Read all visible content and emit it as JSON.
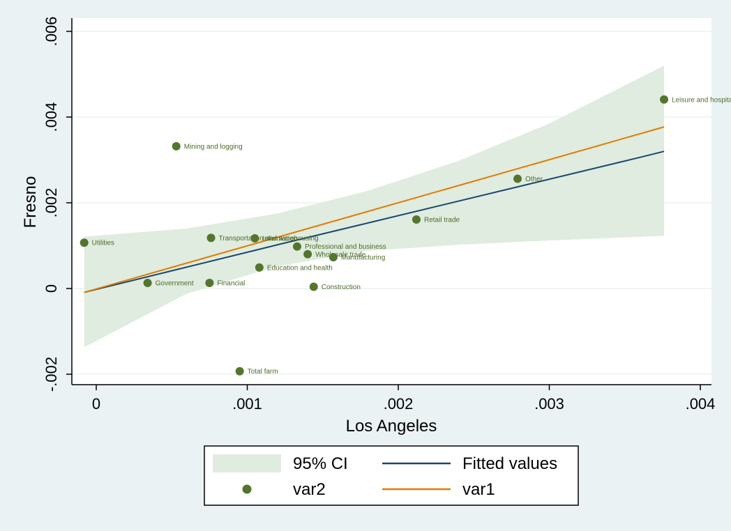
{
  "chart_data": {
    "type": "scatter",
    "xlabel": "Los Angeles",
    "ylabel": "Fresno",
    "xlim": [
      -8e-05,
      0.0041
    ],
    "ylim": [
      -0.0022,
      0.0063
    ],
    "x_ticks": [
      {
        "value": 0,
        "label": "0"
      },
      {
        "value": 0.001,
        "label": ".001"
      },
      {
        "value": 0.002,
        "label": ".002"
      },
      {
        "value": 0.003,
        "label": ".003"
      },
      {
        "value": 0.004,
        "label": ".004"
      }
    ],
    "y_ticks": [
      {
        "value": -0.002,
        "label": "-.002"
      },
      {
        "value": 0,
        "label": "0"
      },
      {
        "value": 0.002,
        "label": ".002"
      },
      {
        "value": 0.004,
        "label": ".004"
      },
      {
        "value": 0.006,
        "label": ".006"
      }
    ],
    "grid": true,
    "legend_position": "bottom",
    "points": [
      {
        "label": "Utilities",
        "x": -8e-05,
        "y": 0.00107
      },
      {
        "label": "Mining and logging",
        "x": 0.00053,
        "y": 0.00332
      },
      {
        "label": "Government",
        "x": 0.00034,
        "y": 0.00013
      },
      {
        "label": "Financial",
        "x": 0.00075,
        "y": 0.00013
      },
      {
        "label": "Transportation and warehousing",
        "x": 0.00076,
        "y": 0.00118
      },
      {
        "label": "Information",
        "x": 0.00105,
        "y": 0.00117
      },
      {
        "label": "Professional and business",
        "x": 0.00133,
        "y": 0.00098
      },
      {
        "label": "Wholesale trade",
        "x": 0.0014,
        "y": 0.0008
      },
      {
        "label": "Manufacturing",
        "x": 0.00157,
        "y": 0.00073
      },
      {
        "label": "Education and health",
        "x": 0.00108,
        "y": 0.00049
      },
      {
        "label": "Construction",
        "x": 0.00144,
        "y": 4e-05
      },
      {
        "label": "Total farm",
        "x": 0.00095,
        "y": -0.00193
      },
      {
        "label": "Retail trade",
        "x": 0.00212,
        "y": 0.00161
      },
      {
        "label": "Other",
        "x": 0.00279,
        "y": 0.00256
      },
      {
        "label": "Leisure and hospitality",
        "x": 0.00376,
        "y": 0.00441
      }
    ],
    "fitted_values": [
      {
        "x": -8e-05,
        "y": -9e-05
      },
      {
        "x": 0.0012,
        "y": 0.00102
      },
      {
        "x": 0.0028,
        "y": 0.00238
      },
      {
        "x": 0.0036,
        "y": 0.00306
      },
      {
        "x": 0.00376,
        "y": 0.0032
      }
    ],
    "var1": [
      {
        "x": -8e-05,
        "y": -9e-05
      },
      {
        "x": 0.00376,
        "y": 0.00377
      }
    ],
    "ci_upper": [
      {
        "x": -8e-05,
        "y": 0.00121
      },
      {
        "x": 0.0006,
        "y": 0.0014
      },
      {
        "x": 0.0012,
        "y": 0.00175
      },
      {
        "x": 0.0018,
        "y": 0.00228
      },
      {
        "x": 0.0024,
        "y": 0.00298
      },
      {
        "x": 0.003,
        "y": 0.00385
      },
      {
        "x": 0.00376,
        "y": 0.0052
      }
    ],
    "ci_lower": [
      {
        "x": -8e-05,
        "y": -0.00137
      },
      {
        "x": 0.0006,
        "y": -0.00012
      },
      {
        "x": 0.0012,
        "y": 0.00052
      },
      {
        "x": 0.0018,
        "y": 0.00088
      },
      {
        "x": 0.0024,
        "y": 0.00102
      },
      {
        "x": 0.003,
        "y": 0.00112
      },
      {
        "x": 0.00376,
        "y": 0.00123
      }
    ],
    "legend": [
      {
        "label": "95% CI",
        "kind": "area"
      },
      {
        "label": "Fitted values",
        "kind": "line"
      },
      {
        "label": "var2",
        "kind": "marker"
      },
      {
        "label": "var1",
        "kind": "line"
      }
    ],
    "colors": {
      "ci": "#dfecdf",
      "fitted": "#1a476f",
      "var1": "#e07b00",
      "marker": "#55752f",
      "marker_label": "#4f6b2a",
      "grid": "#eaf2f3",
      "plot_bg": "#ffffff"
    }
  }
}
